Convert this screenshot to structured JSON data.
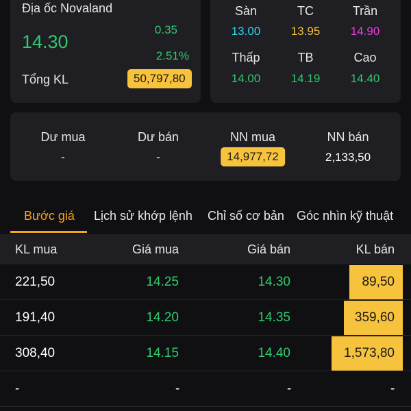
{
  "stock": {
    "name": "Địa ốc Novaland",
    "price": "14.30",
    "change": "0.35",
    "change_pct": "2.51%",
    "volume_label": "Tổng KL",
    "volume_value": "50,797,80"
  },
  "prices": {
    "san_label": "Sàn",
    "san_value": "13.00",
    "tc_label": "TC",
    "tc_value": "13.95",
    "tran_label": "Trần",
    "tran_value": "14.90",
    "thap_label": "Thấp",
    "thap_value": "14.00",
    "tb_label": "TB",
    "tb_value": "14.19",
    "cao_label": "Cao",
    "cao_value": "14.40"
  },
  "trade": {
    "du_mua_label": "Dư mua",
    "du_mua_value": "-",
    "du_ban_label": "Dư bán",
    "du_ban_value": "-",
    "nn_mua_label": "NN mua",
    "nn_mua_value": "14,977,72",
    "nn_ban_label": "NN bán",
    "nn_ban_value": "2,133,50"
  },
  "tabs": [
    {
      "label": "Bước giá"
    },
    {
      "label": "Lịch sử khớp lệnh"
    },
    {
      "label": "Chỉ số cơ bản"
    },
    {
      "label": "Góc nhìn kỹ thuật"
    }
  ],
  "order_book": {
    "headers": {
      "kl_mua": "KL mua",
      "gia_mua": "Giá mua",
      "gia_ban": "Giá bán",
      "kl_ban": "KL bán"
    },
    "rows": [
      {
        "kl_mua": "221,50",
        "gia_mua": "14.25",
        "gia_ban": "14.30",
        "kl_ban": "89,50",
        "kl_ban_ratio": 0.057
      },
      {
        "kl_mua": "191,40",
        "gia_mua": "14.20",
        "gia_ban": "14.35",
        "kl_ban": "359,60",
        "kl_ban_ratio": 0.229
      },
      {
        "kl_mua": "308,40",
        "gia_mua": "14.15",
        "gia_ban": "14.40",
        "kl_ban": "1,573,80",
        "kl_ban_ratio": 1.0
      },
      {
        "kl_mua": "-",
        "gia_mua": "-",
        "gia_ban": "-",
        "kl_ban": "-",
        "kl_ban_ratio": 0
      }
    ]
  },
  "colors": {
    "up": "#2fcb6c",
    "floor": "#29d8f0",
    "reference": "#f5c23b",
    "ceiling": "#e73ee0",
    "accent": "#f7a21b",
    "highlight": "#f7c23c"
  }
}
